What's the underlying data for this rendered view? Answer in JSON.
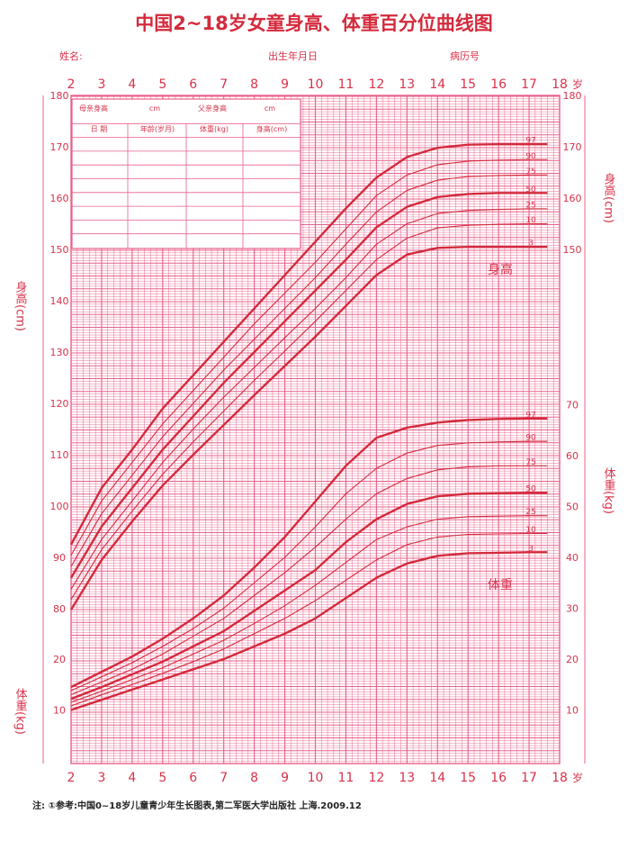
{
  "header": {
    "title": "中国2~18岁女童身高、体重百分位曲线图",
    "name_label": "姓名:",
    "dob_label": "出生年月日",
    "record_label": "病历号"
  },
  "record_table": {
    "row1": [
      "母亲身高",
      "cm",
      "父亲身高",
      "cm"
    ],
    "headers": [
      "日  期",
      "年龄(岁月)",
      "体重(kg)",
      "身高(cm)"
    ]
  },
  "age_unit": "岁",
  "footnote": "注: ①参考:中国0~18岁儿童青少年生长图表,第二军医大学出版社  上海.2009.12",
  "colors": {
    "grid": "#e8608a",
    "curve": "#d42a3c",
    "text": "#d8324a"
  },
  "chart_data": [
    {
      "type": "line",
      "title": "",
      "label": "身高",
      "xlabel": "",
      "ylabel": "身高(cm)",
      "xlim": [
        2,
        18
      ],
      "ylim": [
        80,
        180
      ],
      "x_ticks": [
        2,
        3,
        4,
        5,
        6,
        7,
        8,
        9,
        10,
        11,
        12,
        13,
        14,
        15,
        16,
        17,
        18
      ],
      "y_ticks_left": [
        80,
        90,
        100,
        110,
        120,
        130,
        140,
        150,
        160,
        170,
        180
      ],
      "y_ticks_right": [
        150,
        160,
        170,
        180
      ],
      "x": [
        2,
        3,
        4,
        5,
        6,
        7,
        8,
        9,
        10,
        11,
        12,
        13,
        14,
        15,
        16,
        17
      ],
      "series": [
        {
          "name": "97",
          "values": [
            92.5,
            103.5,
            111,
            119,
            125.5,
            132,
            138.5,
            145,
            151.5,
            158,
            164,
            168,
            169.8,
            170.4,
            170.5,
            170.5
          ]
        },
        {
          "name": "90",
          "values": [
            90.4,
            101,
            108.5,
            116,
            122.5,
            129,
            135.5,
            141.5,
            147.5,
            154,
            160.5,
            164.5,
            166.5,
            167.2,
            167.4,
            167.5
          ]
        },
        {
          "name": "75",
          "values": [
            88.2,
            98.5,
            106,
            113.5,
            120,
            126.5,
            132.5,
            138.5,
            144.5,
            151,
            157.3,
            161.5,
            163.5,
            164.2,
            164.4,
            164.5
          ]
        },
        {
          "name": "50",
          "values": [
            86,
            96,
            103.5,
            111,
            117.5,
            124,
            130,
            136,
            142,
            148,
            154.3,
            158.3,
            160.2,
            160.8,
            161,
            161
          ]
        },
        {
          "name": "25",
          "values": [
            83.8,
            93.5,
            101,
            108.5,
            115,
            121.2,
            127,
            132.8,
            138.5,
            144.5,
            151,
            155,
            157,
            157.6,
            157.8,
            157.9
          ]
        },
        {
          "name": "10",
          "values": [
            81.8,
            91.5,
            99,
            106.2,
            112.5,
            118.5,
            124.5,
            130.2,
            136,
            142,
            148,
            152.2,
            154.2,
            154.7,
            154.9,
            155
          ]
        },
        {
          "name": "3",
          "values": [
            79.8,
            89.5,
            97,
            104,
            110,
            115.8,
            121.6,
            127.3,
            133,
            139,
            145,
            149,
            150.3,
            150.5,
            150.5,
            150.5
          ]
        }
      ]
    },
    {
      "type": "line",
      "title": "",
      "label": "体重",
      "xlabel": "",
      "ylabel": "体重(kg)",
      "xlim": [
        2,
        18
      ],
      "ylim": [
        5,
        70
      ],
      "x_ticks": [
        2,
        3,
        4,
        5,
        6,
        7,
        8,
        9,
        10,
        11,
        12,
        13,
        14,
        15,
        16,
        17,
        18
      ],
      "y_ticks_left": [
        10,
        20
      ],
      "y_ticks_right": [
        10,
        20,
        30,
        40,
        50,
        60,
        70
      ],
      "x": [
        2,
        3,
        4,
        5,
        6,
        7,
        8,
        9,
        10,
        11,
        12,
        13,
        14,
        15,
        16,
        17
      ],
      "series": [
        {
          "name": "97",
          "values": [
            14.5,
            17.5,
            20.5,
            24,
            28,
            32.5,
            38,
            44,
            51,
            58,
            63.5,
            65.5,
            66.5,
            67,
            67.2,
            67.3
          ]
        },
        {
          "name": "90",
          "values": [
            13.8,
            16.5,
            19.3,
            22.5,
            26,
            30,
            35,
            40,
            46,
            52.5,
            57.5,
            60.5,
            62,
            62.5,
            62.7,
            62.8
          ]
        },
        {
          "name": "75",
          "values": [
            13,
            15.5,
            18,
            21,
            24.5,
            28,
            32.5,
            37,
            42,
            47.5,
            52.5,
            55.5,
            57.2,
            57.8,
            58,
            58
          ]
        },
        {
          "name": "50",
          "values": [
            12.2,
            14.5,
            17,
            19.5,
            22.5,
            25.5,
            29.5,
            33.5,
            37.5,
            43,
            47.5,
            50.5,
            52,
            52.5,
            52.6,
            52.7
          ]
        },
        {
          "name": "25",
          "values": [
            11.5,
            13.7,
            16,
            18.3,
            21,
            23.7,
            27,
            30.5,
            34.5,
            39,
            43.5,
            46,
            47.5,
            48,
            48.1,
            48.2
          ]
        },
        {
          "name": "10",
          "values": [
            10.8,
            13,
            15,
            17.2,
            19.5,
            22,
            25,
            28,
            31.5,
            35.5,
            39.5,
            42.5,
            44,
            44.5,
            44.6,
            44.7
          ]
        },
        {
          "name": "3",
          "values": [
            10,
            12,
            14,
            16,
            18,
            20,
            22.5,
            25,
            28,
            32,
            36,
            38.8,
            40.3,
            40.8,
            40.9,
            41
          ]
        }
      ]
    }
  ]
}
